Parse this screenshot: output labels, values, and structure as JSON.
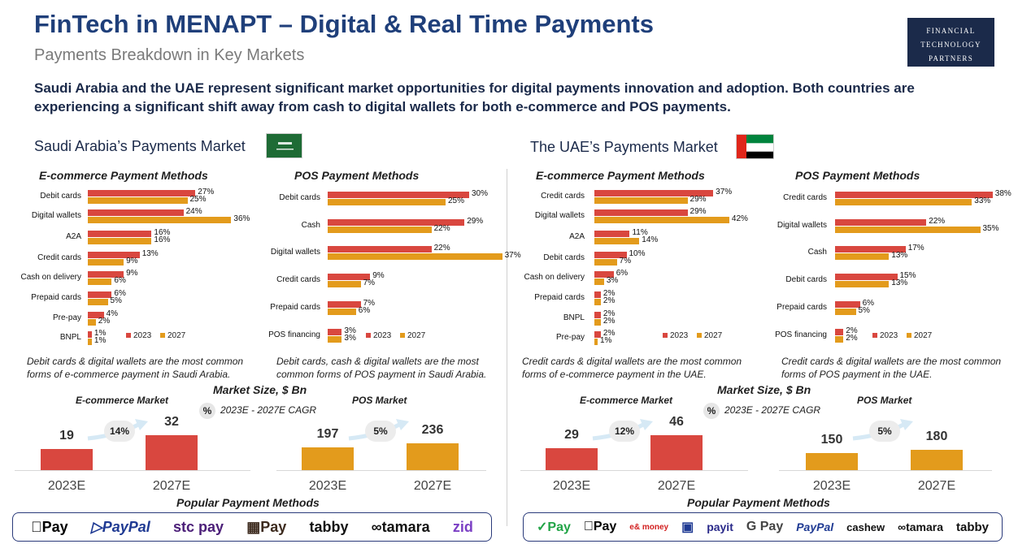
{
  "header": {
    "title": "FinTech in MENAPT – Digital & Real Time Payments",
    "subtitle": "Payments Breakdown in Key Markets",
    "logo_lines": [
      "FINANCIAL",
      "TECHNOLOGY",
      "PARTNERS"
    ],
    "intro": "Saudi Arabia and the UAE represent significant market opportunities for digital payments innovation and adoption. Both countries are experiencing a significant shift away from cash to digital wallets for both e-commerce and POS payments."
  },
  "colors": {
    "y2023": "#d9473f",
    "y2027": "#e39b1c",
    "accent": "#1f3f7a"
  },
  "legend": {
    "y2023": "2023",
    "y2027": "2027"
  },
  "saudi": {
    "section_title": "Saudi Arabia’s Payments Market",
    "ecom_title": "E-commerce Payment Methods",
    "pos_title": "POS Payment Methods",
    "ecom_note": "Debit cards & digital wallets are the most common forms of e-commerce payment in Saudi Arabia.",
    "pos_note": "Debit cards, cash & digital wallets are the most common forms of POS payment in Saudi Arabia.",
    "ecom_market_label": "E-commerce Market",
    "pos_market_label": "POS Market"
  },
  "uae": {
    "section_title": "The UAE’s Payments Market",
    "ecom_title": "E-commerce Payment Methods",
    "pos_title": "POS Payment Methods",
    "ecom_note": "Credit cards & digital wallets are the most common forms of e-commerce payment in the UAE.",
    "pos_note": "Credit cards & digital wallets are the most common forms of POS payment in the UAE.",
    "ecom_market_label": "E-commerce Market",
    "pos_market_label": "POS Market"
  },
  "market_size": {
    "header": "Market Size, $ Bn",
    "cagr_badge": "%",
    "cagr_label": "2023E - 2027E CAGR"
  },
  "popular": {
    "title": "Popular Payment Methods",
    "saudi_logos": [
      "Pay",
      "PayPal",
      "stc pay",
      "Pay",
      "tabby",
      "tamara",
      "zid"
    ],
    "uae_logos": [
      "Pay",
      "Pay",
      "e& money",
      "payit",
      "G Pay",
      "PayPal",
      "cashew",
      "tamara",
      "tabby"
    ]
  },
  "chart_data": [
    {
      "id": "saudi_ecom",
      "type": "bar",
      "orientation": "horizontal",
      "title": "E-commerce Payment Methods",
      "categories": [
        "Debit cards",
        "Digital wallets",
        "A2A",
        "Credit cards",
        "Cash on delivery",
        "Prepaid cards",
        "Pre-pay",
        "BNPL"
      ],
      "series": [
        {
          "name": "2023",
          "values": [
            27,
            24,
            16,
            13,
            9,
            6,
            4,
            1
          ]
        },
        {
          "name": "2027",
          "values": [
            25,
            36,
            16,
            9,
            6,
            5,
            2,
            1
          ]
        }
      ],
      "value_suffix": "%"
    },
    {
      "id": "saudi_pos",
      "type": "bar",
      "orientation": "horizontal",
      "title": "POS Payment Methods",
      "categories": [
        "Debit cards",
        "Cash",
        "Digital wallets",
        "Credit cards",
        "Prepaid cards",
        "POS financing"
      ],
      "series": [
        {
          "name": "2023",
          "values": [
            30,
            29,
            22,
            9,
            7,
            3
          ]
        },
        {
          "name": "2027",
          "values": [
            25,
            22,
            37,
            7,
            6,
            3
          ]
        }
      ],
      "value_suffix": "%"
    },
    {
      "id": "uae_ecom",
      "type": "bar",
      "orientation": "horizontal",
      "title": "E-commerce Payment Methods",
      "categories": [
        "Credit cards",
        "Digital wallets",
        "A2A",
        "Debit cards",
        "Cash on delivery",
        "Prepaid cards",
        "BNPL",
        "Pre-pay"
      ],
      "series": [
        {
          "name": "2023",
          "values": [
            37,
            29,
            11,
            10,
            6,
            2,
            2,
            2
          ]
        },
        {
          "name": "2027",
          "values": [
            29,
            42,
            14,
            7,
            3,
            2,
            2,
            1
          ]
        }
      ],
      "value_suffix": "%"
    },
    {
      "id": "uae_pos",
      "type": "bar",
      "orientation": "horizontal",
      "title": "POS Payment Methods",
      "categories": [
        "Credit cards",
        "Digital wallets",
        "Cash",
        "Debit cards",
        "Prepaid cards",
        "POS financing"
      ],
      "series": [
        {
          "name": "2023",
          "values": [
            38,
            22,
            17,
            15,
            6,
            2
          ]
        },
        {
          "name": "2027",
          "values": [
            33,
            35,
            13,
            13,
            5,
            2
          ]
        }
      ],
      "value_suffix": "%"
    },
    {
      "id": "saudi_ecom_size",
      "type": "bar",
      "title": "E-commerce Market",
      "categories": [
        "2023E",
        "2027E"
      ],
      "values": [
        19,
        32
      ],
      "cagr": "14%"
    },
    {
      "id": "saudi_pos_size",
      "type": "bar",
      "title": "POS Market",
      "categories": [
        "2023E",
        "2027E"
      ],
      "values": [
        197,
        236
      ],
      "cagr": "5%"
    },
    {
      "id": "uae_ecom_size",
      "type": "bar",
      "title": "E-commerce Market",
      "categories": [
        "2023E",
        "2027E"
      ],
      "values": [
        29,
        46
      ],
      "cagr": "12%"
    },
    {
      "id": "uae_pos_size",
      "type": "bar",
      "title": "POS Market",
      "categories": [
        "2023E",
        "2027E"
      ],
      "values": [
        150,
        180
      ],
      "cagr": "5%"
    }
  ]
}
